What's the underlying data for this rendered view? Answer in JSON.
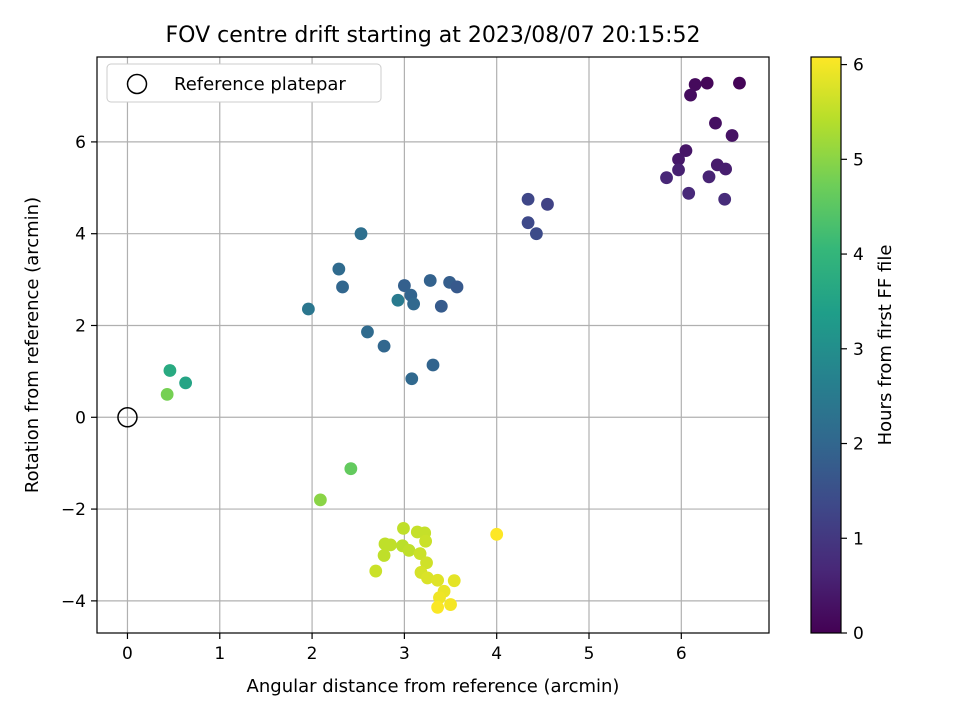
{
  "chart_data": {
    "type": "scatter",
    "title": "FOV centre drift starting at 2023/08/07 20:15:52",
    "xlabel": "Angular distance from reference (arcmin)",
    "ylabel": "Rotation from reference (arcmin)",
    "xlim": [
      -0.33,
      6.95
    ],
    "ylim": [
      -4.7,
      7.85
    ],
    "xticks": [
      0,
      1,
      2,
      3,
      4,
      5,
      6
    ],
    "yticks": [
      -4,
      -2,
      0,
      2,
      4,
      6
    ],
    "grid": true,
    "legend": {
      "placement": "top-left",
      "entries": [
        "Reference platepar"
      ]
    },
    "reference_point": {
      "x": 0,
      "y": 0,
      "label": "Reference platepar"
    },
    "colorbar": {
      "label": "Hours from first FF file",
      "range": [
        0,
        6.08
      ],
      "ticks": [
        0,
        1,
        2,
        3,
        4,
        5,
        6
      ],
      "colormap": "viridis"
    },
    "colormap_stops": [
      "#440154",
      "#482878",
      "#3e4989",
      "#31688e",
      "#26828e",
      "#1f9e89",
      "#35b779",
      "#6ece58",
      "#b5de2b",
      "#fde725"
    ],
    "points": [
      {
        "x": 6.63,
        "y": 7.28,
        "c": 0.05
      },
      {
        "x": 6.28,
        "y": 7.28,
        "c": 0.1
      },
      {
        "x": 6.15,
        "y": 7.25,
        "c": 0.15
      },
      {
        "x": 6.1,
        "y": 7.02,
        "c": 0.2
      },
      {
        "x": 6.37,
        "y": 6.41,
        "c": 0.25
      },
      {
        "x": 6.55,
        "y": 6.14,
        "c": 0.3
      },
      {
        "x": 6.05,
        "y": 5.81,
        "c": 0.35
      },
      {
        "x": 5.97,
        "y": 5.62,
        "c": 0.4
      },
      {
        "x": 6.39,
        "y": 5.5,
        "c": 0.45
      },
      {
        "x": 6.48,
        "y": 5.41,
        "c": 0.5
      },
      {
        "x": 5.97,
        "y": 5.39,
        "c": 0.55
      },
      {
        "x": 6.3,
        "y": 5.24,
        "c": 0.6
      },
      {
        "x": 5.84,
        "y": 5.22,
        "c": 0.65
      },
      {
        "x": 6.08,
        "y": 4.88,
        "c": 0.7
      },
      {
        "x": 6.47,
        "y": 4.75,
        "c": 0.75
      },
      {
        "x": 4.34,
        "y": 4.75,
        "c": 1.3
      },
      {
        "x": 4.55,
        "y": 4.64,
        "c": 1.2
      },
      {
        "x": 4.34,
        "y": 4.24,
        "c": 1.35
      },
      {
        "x": 4.43,
        "y": 4.0,
        "c": 1.4
      },
      {
        "x": 2.53,
        "y": 4.0,
        "c": 2.2
      },
      {
        "x": 2.29,
        "y": 3.23,
        "c": 2.1
      },
      {
        "x": 2.33,
        "y": 2.84,
        "c": 2.0
      },
      {
        "x": 3.28,
        "y": 2.98,
        "c": 1.9
      },
      {
        "x": 3.49,
        "y": 2.94,
        "c": 1.8
      },
      {
        "x": 3.0,
        "y": 2.87,
        "c": 1.85
      },
      {
        "x": 3.57,
        "y": 2.84,
        "c": 1.7
      },
      {
        "x": 3.07,
        "y": 2.66,
        "c": 1.95
      },
      {
        "x": 2.93,
        "y": 2.55,
        "c": 2.5
      },
      {
        "x": 3.1,
        "y": 2.47,
        "c": 2.05
      },
      {
        "x": 3.4,
        "y": 2.42,
        "c": 1.75
      },
      {
        "x": 1.96,
        "y": 2.36,
        "c": 2.4
      },
      {
        "x": 2.6,
        "y": 1.86,
        "c": 2.1
      },
      {
        "x": 2.78,
        "y": 1.55,
        "c": 2.0
      },
      {
        "x": 3.31,
        "y": 1.14,
        "c": 1.95
      },
      {
        "x": 3.08,
        "y": 0.84,
        "c": 2.05
      },
      {
        "x": 0.46,
        "y": 1.02,
        "c": 3.7
      },
      {
        "x": 0.63,
        "y": 0.75,
        "c": 3.55
      },
      {
        "x": 0.43,
        "y": 0.5,
        "c": 4.8
      },
      {
        "x": 2.42,
        "y": -1.12,
        "c": 4.6
      },
      {
        "x": 2.09,
        "y": -1.8,
        "c": 5.0
      },
      {
        "x": 4.0,
        "y": -2.55,
        "c": 6.08
      },
      {
        "x": 2.99,
        "y": -2.42,
        "c": 5.5
      },
      {
        "x": 3.14,
        "y": -2.5,
        "c": 5.55
      },
      {
        "x": 3.22,
        "y": -2.52,
        "c": 5.55
      },
      {
        "x": 3.23,
        "y": -2.7,
        "c": 5.6
      },
      {
        "x": 2.79,
        "y": -2.76,
        "c": 5.5
      },
      {
        "x": 2.85,
        "y": -2.78,
        "c": 5.5
      },
      {
        "x": 2.98,
        "y": -2.8,
        "c": 5.45
      },
      {
        "x": 3.05,
        "y": -2.9,
        "c": 5.5
      },
      {
        "x": 3.17,
        "y": -2.97,
        "c": 5.6
      },
      {
        "x": 2.78,
        "y": -3.01,
        "c": 5.5
      },
      {
        "x": 3.24,
        "y": -3.17,
        "c": 5.65
      },
      {
        "x": 2.69,
        "y": -3.35,
        "c": 5.6
      },
      {
        "x": 3.18,
        "y": -3.38,
        "c": 5.7
      },
      {
        "x": 3.25,
        "y": -3.5,
        "c": 5.75
      },
      {
        "x": 3.36,
        "y": -3.55,
        "c": 5.8
      },
      {
        "x": 3.54,
        "y": -3.56,
        "c": 5.85
      },
      {
        "x": 3.43,
        "y": -3.79,
        "c": 5.9
      },
      {
        "x": 3.38,
        "y": -3.93,
        "c": 5.95
      },
      {
        "x": 3.5,
        "y": -4.08,
        "c": 6.0
      },
      {
        "x": 3.36,
        "y": -4.14,
        "c": 6.05
      }
    ]
  }
}
